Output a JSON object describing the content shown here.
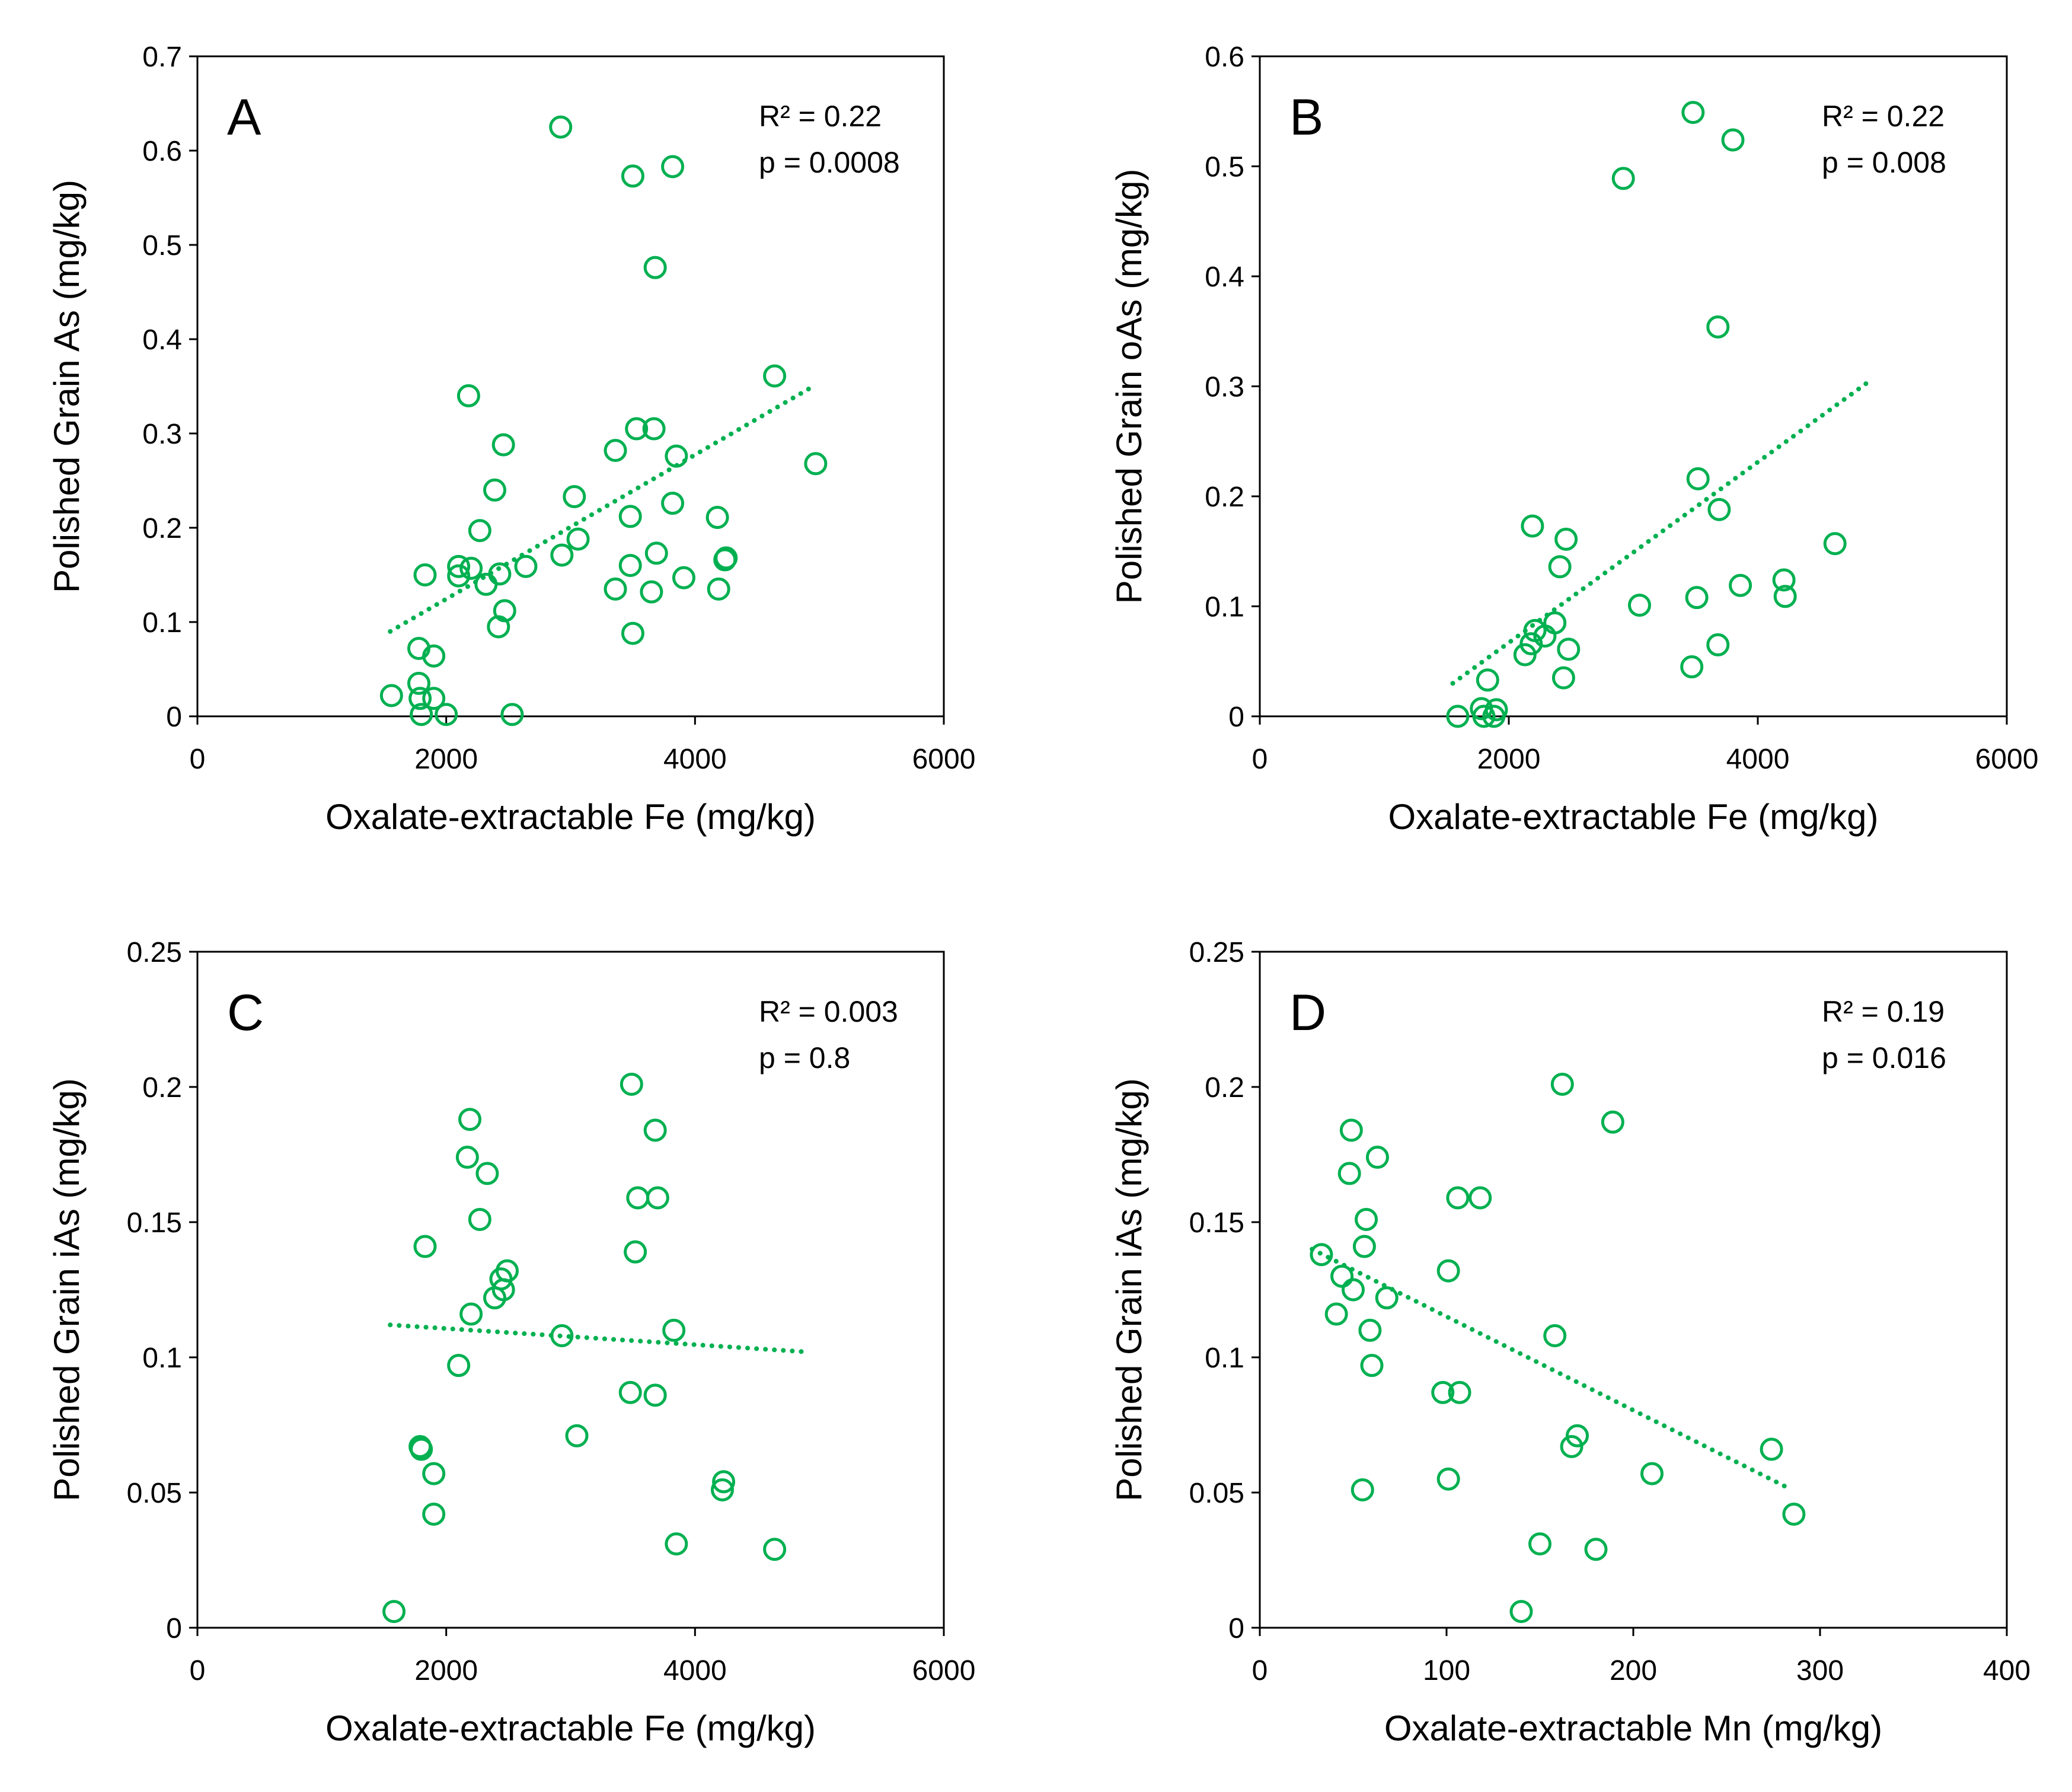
{
  "accent_color": "#00b050",
  "chart_data": [
    {
      "panel": "A",
      "type": "scatter",
      "xlabel": "Oxalate-extractable Fe (mg/kg)",
      "ylabel": "Polished Grain As (mg/kg)",
      "xlim": [
        0,
        6000
      ],
      "ylim": [
        0,
        0.7
      ],
      "xticks": [
        0,
        2000,
        4000,
        6000
      ],
      "xtick_labels": [
        "0",
        "2000",
        "4000",
        "6000"
      ],
      "yticks": [
        0,
        0.1,
        0.2,
        0.3,
        0.4,
        0.5,
        0.6,
        0.7
      ],
      "ytick_labels": [
        "0",
        "0.1",
        "0.2",
        "0.3",
        "0.4",
        "0.5",
        "0.6",
        "0.7"
      ],
      "stats": [
        "R² = 0.22",
        "p = 0.0008"
      ],
      "trendline": {
        "style": "dotted",
        "x": [
          1550,
          4950
        ],
        "y": [
          0.09,
          0.35
        ]
      },
      "points": [
        [
          2920,
          0.625
        ],
        [
          3500,
          0.573
        ],
        [
          3820,
          0.583
        ],
        [
          3680,
          0.476
        ],
        [
          4640,
          0.361
        ],
        [
          4970,
          0.268
        ],
        [
          2180,
          0.34
        ],
        [
          3360,
          0.282
        ],
        [
          3530,
          0.305
        ],
        [
          3670,
          0.305
        ],
        [
          3850,
          0.276
        ],
        [
          2460,
          0.288
        ],
        [
          2390,
          0.24
        ],
        [
          3030,
          0.233
        ],
        [
          2270,
          0.197
        ],
        [
          3480,
          0.212
        ],
        [
          3820,
          0.226
        ],
        [
          4180,
          0.211
        ],
        [
          3060,
          0.188
        ],
        [
          2930,
          0.171
        ],
        [
          3690,
          0.173
        ],
        [
          4250,
          0.168
        ],
        [
          4240,
          0.166
        ],
        [
          3480,
          0.16
        ],
        [
          2640,
          0.159
        ],
        [
          2100,
          0.159
        ],
        [
          2200,
          0.157
        ],
        [
          2430,
          0.151
        ],
        [
          2100,
          0.149
        ],
        [
          1830,
          0.15
        ],
        [
          3910,
          0.147
        ],
        [
          2320,
          0.14
        ],
        [
          3360,
          0.135
        ],
        [
          3650,
          0.132
        ],
        [
          4190,
          0.135
        ],
        [
          2470,
          0.112
        ],
        [
          2420,
          0.095
        ],
        [
          3500,
          0.088
        ],
        [
          1780,
          0.072
        ],
        [
          1900,
          0.064
        ],
        [
          1560,
          0.022
        ],
        [
          1780,
          0.035
        ],
        [
          1790,
          0.019
        ],
        [
          1900,
          0.019
        ],
        [
          1800,
          0.002
        ],
        [
          2000,
          0.002
        ],
        [
          2530,
          0.002
        ]
      ]
    },
    {
      "panel": "B",
      "type": "scatter",
      "xlabel": "Oxalate-extractable Fe (mg/kg)",
      "ylabel": "Polished Grain oAs (mg/kg)",
      "xlim": [
        0,
        6000
      ],
      "ylim": [
        0,
        0.6
      ],
      "xticks": [
        0,
        2000,
        4000,
        6000
      ],
      "xtick_labels": [
        "0",
        "2000",
        "4000",
        "6000"
      ],
      "yticks": [
        0,
        0.1,
        0.2,
        0.3,
        0.4,
        0.5,
        0.6
      ],
      "ytick_labels": [
        "0",
        "0.1",
        "0.2",
        "0.3",
        "0.4",
        "0.5",
        "0.6"
      ],
      "stats": [
        "R² = 0.22",
        "p = 0.008"
      ],
      "trendline": {
        "style": "dotted",
        "x": [
          1550,
          4900
        ],
        "y": [
          0.03,
          0.305
        ]
      },
      "points": [
        [
          3480,
          0.549
        ],
        [
          3800,
          0.524
        ],
        [
          2920,
          0.489
        ],
        [
          3680,
          0.354
        ],
        [
          3520,
          0.216
        ],
        [
          3690,
          0.188
        ],
        [
          2190,
          0.173
        ],
        [
          2460,
          0.161
        ],
        [
          4620,
          0.157
        ],
        [
          2410,
          0.136
        ],
        [
          4210,
          0.124
        ],
        [
          3860,
          0.119
        ],
        [
          3510,
          0.108
        ],
        [
          4220,
          0.109
        ],
        [
          3050,
          0.101
        ],
        [
          2370,
          0.085
        ],
        [
          2210,
          0.078
        ],
        [
          2290,
          0.073
        ],
        [
          2180,
          0.066
        ],
        [
          3680,
          0.065
        ],
        [
          2480,
          0.061
        ],
        [
          2130,
          0.056
        ],
        [
          3470,
          0.045
        ],
        [
          2440,
          0.035
        ],
        [
          1830,
          0.033
        ],
        [
          1780,
          0.007
        ],
        [
          1900,
          0.006
        ],
        [
          1590,
          0.0
        ],
        [
          1800,
          0.0
        ],
        [
          1880,
          0.0
        ]
      ]
    },
    {
      "panel": "C",
      "type": "scatter",
      "xlabel": "Oxalate-extractable Fe (mg/kg)",
      "ylabel": "Polished Grain iAs (mg/kg)",
      "xlim": [
        0,
        6000
      ],
      "ylim": [
        0,
        0.25
      ],
      "xticks": [
        0,
        2000,
        4000,
        6000
      ],
      "xtick_labels": [
        "0",
        "2000",
        "4000",
        "6000"
      ],
      "yticks": [
        0,
        0.05,
        0.1,
        0.15,
        0.2,
        0.25
      ],
      "ytick_labels": [
        "0",
        "0.05",
        "0.1",
        "0.15",
        "0.2",
        "0.25"
      ],
      "stats": [
        "R² = 0.003",
        "p = 0.8"
      ],
      "trendline": {
        "style": "dotted",
        "x": [
          1550,
          4900
        ],
        "y": [
          0.112,
          0.102
        ]
      },
      "points": [
        [
          3490,
          0.201
        ],
        [
          2190,
          0.188
        ],
        [
          3680,
          0.184
        ],
        [
          2170,
          0.174
        ],
        [
          2330,
          0.168
        ],
        [
          3540,
          0.159
        ],
        [
          3700,
          0.159
        ],
        [
          2270,
          0.151
        ],
        [
          1830,
          0.141
        ],
        [
          3520,
          0.139
        ],
        [
          2490,
          0.132
        ],
        [
          2440,
          0.129
        ],
        [
          2460,
          0.125
        ],
        [
          2390,
          0.122
        ],
        [
          2200,
          0.116
        ],
        [
          3830,
          0.11
        ],
        [
          2930,
          0.108
        ],
        [
          2100,
          0.097
        ],
        [
          3480,
          0.087
        ],
        [
          3680,
          0.086
        ],
        [
          3050,
          0.071
        ],
        [
          1790,
          0.067
        ],
        [
          1800,
          0.066
        ],
        [
          1900,
          0.057
        ],
        [
          4230,
          0.054
        ],
        [
          4220,
          0.051
        ],
        [
          1900,
          0.042
        ],
        [
          3850,
          0.031
        ],
        [
          4640,
          0.029
        ],
        [
          1580,
          0.006
        ]
      ]
    },
    {
      "panel": "D",
      "type": "scatter",
      "xlabel": "Oxalate-extractable Mn (mg/kg)",
      "ylabel": "Polished Grain iAs (mg/kg)",
      "xlim": [
        0,
        400
      ],
      "ylim": [
        0,
        0.25
      ],
      "xticks": [
        0,
        100,
        200,
        300,
        400
      ],
      "xtick_labels": [
        "0",
        "100",
        "200",
        "300",
        "400"
      ],
      "yticks": [
        0,
        0.05,
        0.1,
        0.15,
        0.2,
        0.25
      ],
      "ytick_labels": [
        "0",
        "0.05",
        "0.1",
        "0.15",
        "0.2",
        "0.25"
      ],
      "stats": [
        "R² = 0.19",
        "p = 0.016"
      ],
      "trendline": {
        "style": "dotted",
        "x": [
          28,
          285
        ],
        "y": [
          0.14,
          0.051
        ]
      },
      "points": [
        [
          162,
          0.201
        ],
        [
          189,
          0.187
        ],
        [
          49,
          0.184
        ],
        [
          63,
          0.174
        ],
        [
          48,
          0.168
        ],
        [
          106,
          0.159
        ],
        [
          118,
          0.159
        ],
        [
          57,
          0.151
        ],
        [
          56,
          0.141
        ],
        [
          33,
          0.138
        ],
        [
          101,
          0.132
        ],
        [
          44,
          0.13
        ],
        [
          50,
          0.125
        ],
        [
          68,
          0.122
        ],
        [
          41,
          0.116
        ],
        [
          59,
          0.11
        ],
        [
          158,
          0.108
        ],
        [
          60,
          0.097
        ],
        [
          98,
          0.087
        ],
        [
          107,
          0.087
        ],
        [
          170,
          0.071
        ],
        [
          167,
          0.067
        ],
        [
          274,
          0.066
        ],
        [
          210,
          0.057
        ],
        [
          101,
          0.055
        ],
        [
          55,
          0.051
        ],
        [
          286,
          0.042
        ],
        [
          150,
          0.031
        ],
        [
          180,
          0.029
        ],
        [
          140,
          0.006
        ]
      ]
    }
  ]
}
